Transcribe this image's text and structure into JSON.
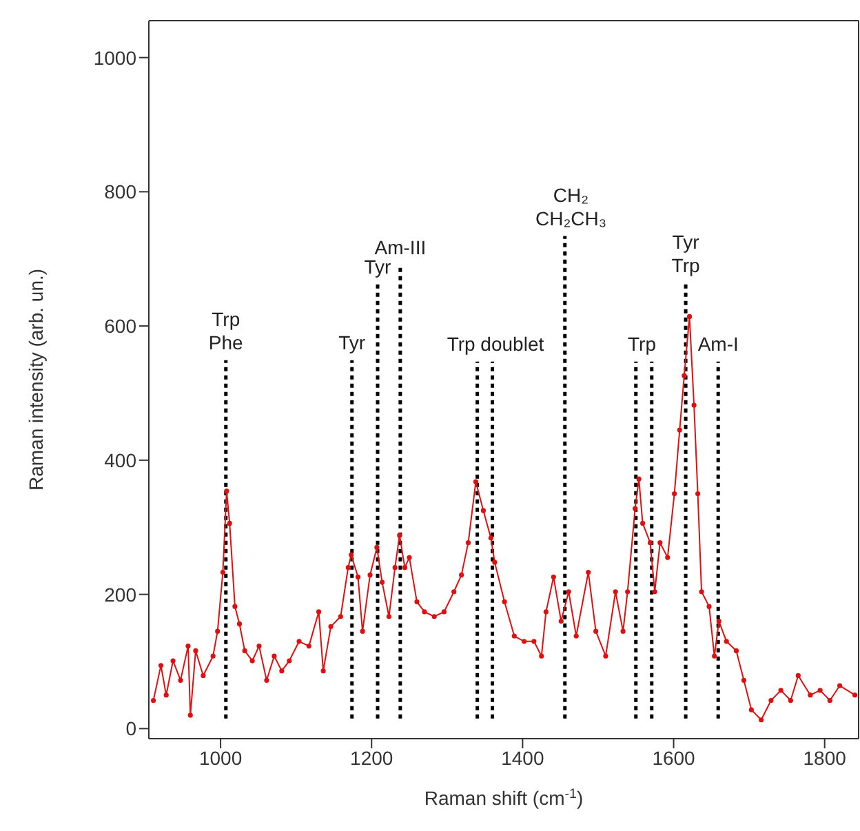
{
  "chart_data": {
    "type": "line",
    "xlabel": "Raman shift (cm$^{-1}$)",
    "ylabel": "Raman intensity (arb. un.)",
    "xlim": [
      905,
      1845
    ],
    "ylim": [
      -15,
      1055
    ],
    "xticks": [
      1000,
      1200,
      1400,
      1600,
      1800
    ],
    "yticks": [
      0,
      200,
      400,
      600,
      800,
      1000
    ],
    "marker": "circle",
    "line_style": "solid",
    "series": [
      {
        "color": "#e01010",
        "x": [
          911,
          921,
          928,
          937,
          947,
          957,
          960,
          967,
          977,
          990,
          996,
          1003,
          1008,
          1012,
          1019,
          1025,
          1032,
          1042,
          1051,
          1061,
          1071,
          1081,
          1091,
          1104,
          1117,
          1130,
          1136,
          1146,
          1159,
          1169,
          1173,
          1182,
          1188,
          1198,
          1207,
          1214,
          1223,
          1231,
          1237,
          1244,
          1250,
          1260,
          1270,
          1283,
          1296,
          1309,
          1319,
          1328,
          1338,
          1348,
          1358,
          1363,
          1376,
          1389,
          1402,
          1415,
          1425,
          1431,
          1441,
          1451,
          1461,
          1471,
          1487,
          1497,
          1510,
          1523,
          1533,
          1539,
          1549,
          1554,
          1559,
          1569,
          1575,
          1582,
          1592,
          1601,
          1608,
          1614,
          1621,
          1627,
          1632,
          1637,
          1647,
          1654,
          1660,
          1670,
          1683,
          1693,
          1703,
          1716,
          1729,
          1742,
          1755,
          1765,
          1781,
          1794,
          1807,
          1820,
          1840
        ],
        "values": [
          42,
          94,
          50,
          101,
          72,
          123,
          20,
          116,
          79,
          108,
          145,
          233,
          354,
          306,
          182,
          156,
          116,
          101,
          123,
          72,
          108,
          86,
          101,
          130,
          123,
          174,
          86,
          152,
          167,
          240,
          259,
          226,
          145,
          229,
          270,
          218,
          167,
          240,
          288,
          240,
          255,
          189,
          174,
          167,
          174,
          204,
          229,
          277,
          368,
          325,
          284,
          248,
          189,
          138,
          130,
          130,
          108,
          174,
          226,
          160,
          204,
          138,
          233,
          145,
          108,
          204,
          145,
          204,
          328,
          372,
          306,
          277,
          204,
          277,
          255,
          350,
          445,
          526,
          614,
          482,
          350,
          204,
          182,
          108,
          160,
          130,
          116,
          72,
          28,
          13,
          42,
          57,
          42,
          79,
          50,
          57,
          42,
          64,
          50
        ]
      }
    ],
    "ref_lines": [
      {
        "axis": "x",
        "value": 1007,
        "color": "#000000",
        "line_style": "dotted"
      },
      {
        "axis": "x",
        "value": 1174,
        "color": "#000000",
        "line_style": "dotted"
      },
      {
        "axis": "x",
        "value": 1208,
        "color": "#000000",
        "line_style": "dotted"
      },
      {
        "axis": "x",
        "value": 1238,
        "color": "#000000",
        "line_style": "dotted"
      },
      {
        "axis": "x",
        "value": 1340,
        "color": "#000000",
        "line_style": "dotted"
      },
      {
        "axis": "x",
        "value": 1360,
        "color": "#000000",
        "line_style": "dotted"
      },
      {
        "axis": "x",
        "value": 1456,
        "color": "#000000",
        "line_style": "dotted"
      },
      {
        "axis": "x",
        "value": 1550,
        "color": "#000000",
        "line_style": "dotted"
      },
      {
        "axis": "x",
        "value": 1571,
        "color": "#000000",
        "line_style": "dotted"
      },
      {
        "axis": "x",
        "value": 1616,
        "color": "#000000",
        "line_style": "dotted"
      },
      {
        "axis": "x",
        "value": 1659,
        "color": "#000000",
        "line_style": "dotted"
      }
    ],
    "annotations": [
      {
        "text": "Trp\nPhe",
        "x": 1007,
        "y": 549
      },
      {
        "text": "Tyr",
        "x": 1174,
        "y": 549
      },
      {
        "text": "Tyr",
        "x": 1208,
        "y": 662
      },
      {
        "text": "Am-III",
        "x": 1238,
        "y": 690
      },
      {
        "text": "Trp doublet",
        "x": 1364,
        "y": 547
      },
      {
        "text": "CH₂\nCH₂CH₃",
        "x": 1464,
        "y": 734
      },
      {
        "text": "Trp",
        "x": 1558,
        "y": 547
      },
      {
        "text": "Tyr\nTrp",
        "x": 1616,
        "y": 664
      },
      {
        "text": "Am-I",
        "x": 1659,
        "y": 547
      }
    ]
  }
}
